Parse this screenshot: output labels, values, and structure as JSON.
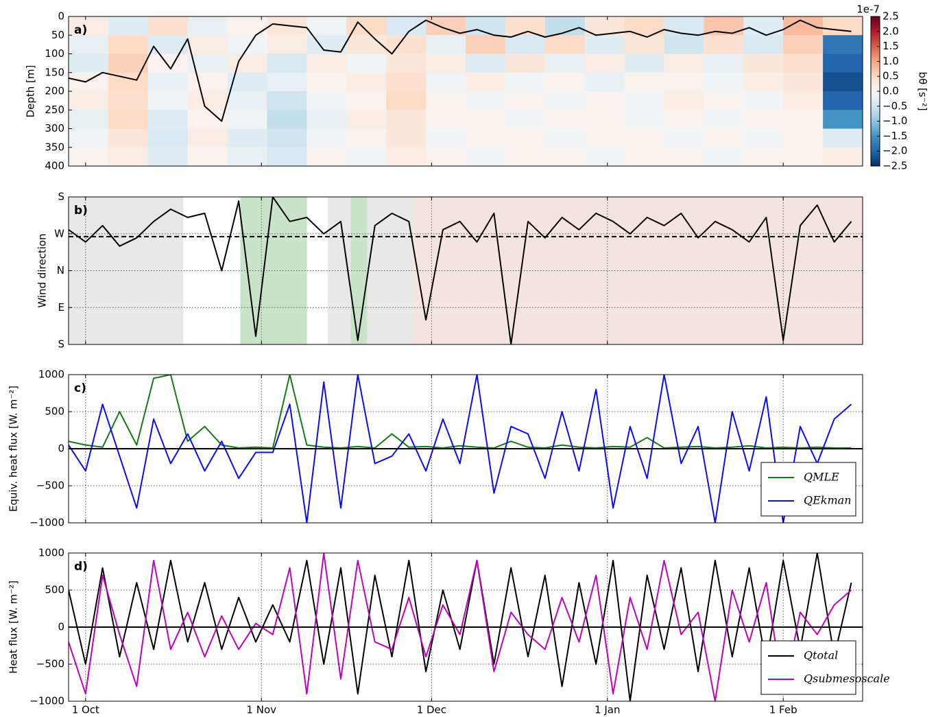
{
  "chart_data": [
    {
      "type": "heatmap",
      "panel_label": "a)",
      "ylabel": "Depth [m]",
      "x_edges": [
        -3,
        4,
        11,
        18,
        25,
        32,
        39,
        46,
        53,
        60,
        67,
        74,
        81,
        88,
        95,
        102,
        109,
        116,
        123,
        130,
        137
      ],
      "y_edges": [
        0,
        50,
        100,
        150,
        200,
        250,
        300,
        350,
        400
      ],
      "z": [
        [
          0.2,
          -0.3,
          0.4,
          -0.2,
          0.1,
          0.3,
          -0.1,
          0.5,
          -0.4,
          0.6,
          -0.5,
          0.4,
          -0.6,
          0.3,
          0.5,
          -0.4,
          0.7,
          -0.3,
          0.8,
          0.5
        ],
        [
          -0.2,
          0.5,
          -0.3,
          0.2,
          -0.1,
          0.2,
          -0.3,
          0.3,
          0.4,
          -0.2,
          0.6,
          -0.4,
          0.5,
          -0.3,
          0.3,
          -0.5,
          0.4,
          -0.4,
          0.6,
          -1.8
        ],
        [
          -0.3,
          0.6,
          0.1,
          -0.2,
          0.2,
          -0.4,
          0.2,
          -0.1,
          0.3,
          0.2,
          -0.3,
          0.3,
          -0.2,
          0.2,
          -0.3,
          0.2,
          -0.2,
          0.3,
          0.4,
          -2.0
        ],
        [
          0.1,
          0.5,
          -0.2,
          0.1,
          -0.3,
          -0.2,
          0.1,
          0.2,
          0.4,
          -0.1,
          0.2,
          -0.1,
          0.1,
          -0.2,
          0.1,
          0.1,
          -0.1,
          0.2,
          0.3,
          -2.2
        ],
        [
          0.2,
          0.4,
          -0.1,
          0.2,
          -0.2,
          -0.5,
          -0.1,
          0.1,
          0.5,
          0.1,
          -0.1,
          0.1,
          -0.1,
          0.1,
          -0.1,
          0.2,
          0.1,
          -0.1,
          0.2,
          -2.0
        ],
        [
          -0.2,
          0.5,
          -0.3,
          0.1,
          -0.1,
          -0.6,
          -0.2,
          0.2,
          0.3,
          0.1,
          0.1,
          -0.1,
          0.1,
          0.1,
          -0.1,
          0.1,
          -0.1,
          0.1,
          0.1,
          -1.5
        ],
        [
          -0.1,
          0.3,
          -0.4,
          0.2,
          -0.3,
          -0.5,
          -0.1,
          0.1,
          0.3,
          -0.1,
          0.1,
          0.1,
          -0.1,
          0.1,
          0.1,
          -0.1,
          0.1,
          -0.1,
          0.1,
          -0.3
        ],
        [
          0.1,
          0.2,
          -0.3,
          0.1,
          -0.2,
          -0.4,
          0.1,
          -0.1,
          0.2,
          0.1,
          -0.1,
          0.1,
          0.1,
          -0.1,
          0.1,
          0.1,
          -0.1,
          0.1,
          0.1,
          0.2
        ]
      ],
      "clim": [
        -2.5,
        2.5
      ],
      "colorbar_label": "bθ [s⁻²]",
      "colorbar_offset": "1e-7",
      "colorbar_ticks": [
        2.5,
        {
          "value": 2,
          "label": "2.0"
        },
        1.5,
        {
          "value": 1,
          "label": "1.0"
        },
        0.5,
        {
          "value": 0,
          "label": "0.0"
        },
        {
          "value": -0.5,
          "label": "−0.5"
        },
        {
          "value": -1,
          "label": "−1.0"
        },
        {
          "value": -1.5,
          "label": "−1.5"
        },
        {
          "value": -2,
          "label": "−2.0"
        },
        {
          "value": -2.5,
          "label": "−2.5"
        }
      ],
      "x": [
        -3,
        0,
        3,
        6,
        9,
        12,
        15,
        18,
        21,
        24,
        27,
        30,
        33,
        36,
        39,
        42,
        45,
        48,
        51,
        54,
        57,
        60,
        63,
        66,
        69,
        72,
        75,
        78,
        81,
        84,
        87,
        90,
        93,
        96,
        99,
        102,
        105,
        108,
        111,
        114,
        117,
        120,
        123,
        126,
        129,
        132,
        135
      ],
      "series": [
        {
          "color": "#000000",
          "values": [
            165,
            175,
            150,
            160,
            170,
            80,
            140,
            60,
            240,
            280,
            120,
            50,
            20,
            25,
            30,
            90,
            95,
            15,
            60,
            100,
            40,
            10,
            30,
            45,
            35,
            50,
            55,
            40,
            55,
            45,
            30,
            50,
            45,
            40,
            55,
            35,
            45,
            50,
            40,
            45,
            30,
            50,
            35,
            10,
            30,
            35,
            40
          ]
        }
      ],
      "xlim": [
        -3,
        137
      ],
      "ylim": [
        400,
        0
      ],
      "yticks": [
        0,
        50,
        100,
        150,
        200,
        250,
        300,
        350,
        400
      ],
      "xticks": [
        0,
        31,
        61,
        92,
        123
      ]
    },
    {
      "type": "line",
      "panel_label": "b)",
      "ylabel": "Wind direction",
      "x": [
        -3,
        0,
        3,
        6,
        9,
        12,
        15,
        18,
        21,
        24,
        27,
        30,
        33,
        36,
        39,
        42,
        45,
        48,
        51,
        54,
        57,
        60,
        63,
        66,
        69,
        72,
        75,
        78,
        81,
        84,
        87,
        90,
        93,
        96,
        99,
        102,
        105,
        108,
        111,
        114,
        117,
        120,
        123,
        126,
        129,
        132,
        135
      ],
      "series": [
        {
          "color": "#000000",
          "values": [
            280,
            250,
            290,
            240,
            260,
            300,
            330,
            310,
            320,
            180,
            350,
            20,
            360,
            300,
            310,
            270,
            300,
            10,
            290,
            320,
            300,
            60,
            280,
            300,
            250,
            320,
            0,
            300,
            260,
            310,
            280,
            320,
            300,
            270,
            310,
            290,
            320,
            260,
            300,
            280,
            250,
            310,
            10,
            290,
            340,
            250,
            300
          ]
        }
      ],
      "spans": [
        {
          "start": -3,
          "end": 17.2,
          "color": "#e8e8e8"
        },
        {
          "start": 27.3,
          "end": 39,
          "color": "#c8e3c8"
        },
        {
          "start": 42.7,
          "end": 57.8,
          "color": "#e8e8e8"
        },
        {
          "start": 46.8,
          "end": 49.6,
          "color": "#c8e3c8"
        },
        {
          "start": 57.8,
          "end": 137,
          "color": "#f4e4e1"
        }
      ],
      "reference_line": 263,
      "xlim": [
        -3,
        137
      ],
      "ylim": [
        0,
        360
      ],
      "grid": true,
      "xticks": [
        0,
        31,
        61,
        92,
        123
      ],
      "yticks": [
        {
          "value": 0,
          "label": "S"
        },
        {
          "value": 90,
          "label": "E"
        },
        {
          "value": 180,
          "label": "N"
        },
        {
          "value": 270,
          "label": "W"
        },
        {
          "value": 360,
          "label": "S"
        }
      ]
    },
    {
      "type": "line",
      "panel_label": "c)",
      "ylabel": "Equiv. heat flux [W. m⁻²]",
      "x": [
        -3,
        0,
        3,
        6,
        9,
        12,
        15,
        18,
        21,
        24,
        27,
        30,
        33,
        36,
        39,
        42,
        45,
        48,
        51,
        54,
        57,
        60,
        63,
        66,
        69,
        72,
        75,
        78,
        81,
        84,
        87,
        90,
        93,
        96,
        99,
        102,
        105,
        108,
        111,
        114,
        117,
        120,
        123,
        126,
        129,
        132,
        135
      ],
      "series": [
        {
          "name": "QMLE",
          "color": "#117a11",
          "values": [
            100,
            50,
            20,
            500,
            50,
            950,
            1000,
            100,
            300,
            50,
            10,
            20,
            10,
            1000,
            50,
            20,
            10,
            30,
            10,
            200,
            20,
            30,
            10,
            40,
            20,
            10,
            100,
            20,
            10,
            50,
            20,
            10,
            30,
            20,
            150,
            10,
            20,
            30,
            10,
            20,
            40,
            10,
            20,
            10,
            20,
            10,
            10
          ]
        },
        {
          "name": "QEkman",
          "color": "#0a0aff",
          "values": [
            50,
            -300,
            600,
            -100,
            -800,
            400,
            -200,
            200,
            -300,
            100,
            -400,
            -50,
            -50,
            600,
            -1000,
            900,
            -800,
            1000,
            -200,
            -100,
            200,
            -300,
            400,
            -200,
            1000,
            -600,
            300,
            200,
            -400,
            500,
            -300,
            800,
            -800,
            300,
            -400,
            1000,
            -200,
            300,
            -1000,
            500,
            -300,
            700,
            -1000,
            300,
            -200,
            400,
            600
          ]
        }
      ],
      "hline": 0,
      "legend": "lower right",
      "xlim": [
        -3,
        137
      ],
      "ylim": [
        -1000,
        1000
      ],
      "grid": true,
      "xticks": [
        0,
        31,
        61,
        92,
        123
      ],
      "yticks": [
        {
          "value": -1000,
          "label": "−1000"
        },
        {
          "value": -500,
          "label": "−500"
        },
        0,
        500,
        1000
      ]
    },
    {
      "type": "line",
      "panel_label": "d)",
      "ylabel": "Heat flux [W. m⁻²]",
      "x": [
        -3,
        0,
        3,
        6,
        9,
        12,
        15,
        18,
        21,
        24,
        27,
        30,
        33,
        36,
        39,
        42,
        45,
        48,
        51,
        54,
        57,
        60,
        63,
        66,
        69,
        72,
        75,
        78,
        81,
        84,
        87,
        90,
        93,
        96,
        99,
        102,
        105,
        108,
        111,
        114,
        117,
        120,
        123,
        126,
        129,
        132,
        135
      ],
      "series": [
        {
          "name": "Qtotal",
          "color": "#000000",
          "values": [
            500,
            -500,
            800,
            -400,
            600,
            -300,
            900,
            -200,
            600,
            -300,
            400,
            -200,
            300,
            -200,
            900,
            -500,
            800,
            -900,
            700,
            -400,
            900,
            -600,
            500,
            -300,
            900,
            -500,
            800,
            -400,
            700,
            -800,
            600,
            -500,
            900,
            -1000,
            700,
            -300,
            800,
            -600,
            900,
            -400,
            800,
            -500,
            900,
            -300,
            1000,
            -400,
            600
          ]
        },
        {
          "name": "Qsubmesoscale",
          "color": "#c000c0",
          "values": [
            -200,
            -900,
            700,
            -100,
            -800,
            900,
            -300,
            200,
            -400,
            150,
            -300,
            50,
            -100,
            800,
            -900,
            1000,
            -700,
            900,
            -200,
            -300,
            400,
            -400,
            300,
            -100,
            900,
            -600,
            200,
            -100,
            -300,
            400,
            -200,
            700,
            -900,
            400,
            -300,
            900,
            -100,
            200,
            -1000,
            500,
            -200,
            600,
            -900,
            200,
            -100,
            300,
            500
          ]
        }
      ],
      "hline": 0,
      "legend": "lower right",
      "xlim": [
        -3,
        137
      ],
      "ylim": [
        -1000,
        1000
      ],
      "grid": true,
      "xticks": [
        {
          "value": 0,
          "label": "1 Oct"
        },
        {
          "value": 31,
          "label": "1 Nov"
        },
        {
          "value": 61,
          "label": "1 Dec"
        },
        {
          "value": 92,
          "label": "1 Jan"
        },
        {
          "value": 123,
          "label": "1 Feb"
        }
      ],
      "yticks": [
        {
          "value": -1000,
          "label": "−1000"
        },
        {
          "value": -500,
          "label": "−500"
        },
        0,
        500,
        1000
      ]
    }
  ]
}
